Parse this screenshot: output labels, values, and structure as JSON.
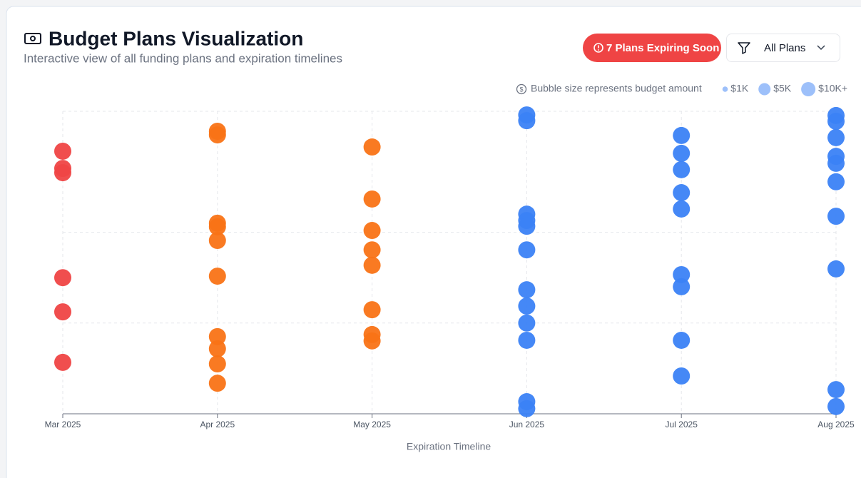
{
  "header": {
    "title": "Budget Plans Visualization",
    "subtitle": "Interactive view of all funding plans and expiration timelines",
    "badge": "7 Plans Expiring Soon",
    "filter": "All Plans"
  },
  "chart_data": {
    "type": "scatter",
    "legend_note": "Bubble size represents budget amount",
    "size_legend": [
      {
        "label": "$1K",
        "value": 1000
      },
      {
        "label": "$5K",
        "value": 5000
      },
      {
        "label": "$10K+",
        "value": 10000
      }
    ],
    "xlabel": "Expiration Timeline",
    "categories": [
      "Mar 2025",
      "Apr 2025",
      "May 2025",
      "Jun 2025",
      "Jul 2025",
      "Aug 2025"
    ],
    "ylim": [
      0,
      100
    ],
    "yticks": [
      0,
      30,
      60,
      100
    ],
    "grid": true,
    "series": [
      {
        "color": "#ef4444",
        "x": [
          "Mar 2025",
          "Mar 2025",
          "Mar 2025",
          "Mar 2025",
          "Mar 2025",
          "Mar 2025"
        ],
        "values": [
          86.8,
          81.1,
          79.7,
          45.0,
          33.7,
          17.0
        ]
      },
      {
        "color": "#f97316",
        "x": [
          "Apr 2025",
          "Apr 2025",
          "Apr 2025",
          "Apr 2025",
          "Apr 2025",
          "Apr 2025",
          "Apr 2025",
          "Apr 2025",
          "Apr 2025",
          "Apr 2025",
          "May 2025",
          "May 2025",
          "May 2025",
          "May 2025",
          "May 2025",
          "May 2025",
          "May 2025",
          "May 2025"
        ],
        "values": [
          93.4,
          92.2,
          63.0,
          61.8,
          57.3,
          45.5,
          25.5,
          21.5,
          16.5,
          10.1,
          88.2,
          71.0,
          60.6,
          54.2,
          49.1,
          34.4,
          26.2,
          24.1
        ]
      },
      {
        "color": "#3b82f6",
        "x": [
          "Jun 2025",
          "Jun 2025",
          "Jun 2025",
          "Jun 2025",
          "Jun 2025",
          "Jun 2025",
          "Jun 2025",
          "Jun 2025",
          "Jun 2025",
          "Jun 2025",
          "Jun 2025",
          "Jun 2025",
          "Jul 2025",
          "Jul 2025",
          "Jul 2025",
          "Jul 2025",
          "Jul 2025",
          "Jul 2025",
          "Jul 2025",
          "Jul 2025",
          "Jul 2025",
          "Aug 2025",
          "Aug 2025",
          "Aug 2025",
          "Aug 2025",
          "Aug 2025",
          "Aug 2025",
          "Aug 2025",
          "Aug 2025",
          "Aug 2025",
          "Aug 2025"
        ],
        "values": [
          98.8,
          96.9,
          66.0,
          63.9,
          62.0,
          54.2,
          41.0,
          35.6,
          30.0,
          24.3,
          4.0,
          1.7,
          92.0,
          86.1,
          80.7,
          73.1,
          67.7,
          46.0,
          42.0,
          24.3,
          12.5,
          98.6,
          96.7,
          91.3,
          85.1,
          82.8,
          76.7,
          65.3,
          47.9,
          8.0,
          2.4
        ]
      }
    ]
  }
}
